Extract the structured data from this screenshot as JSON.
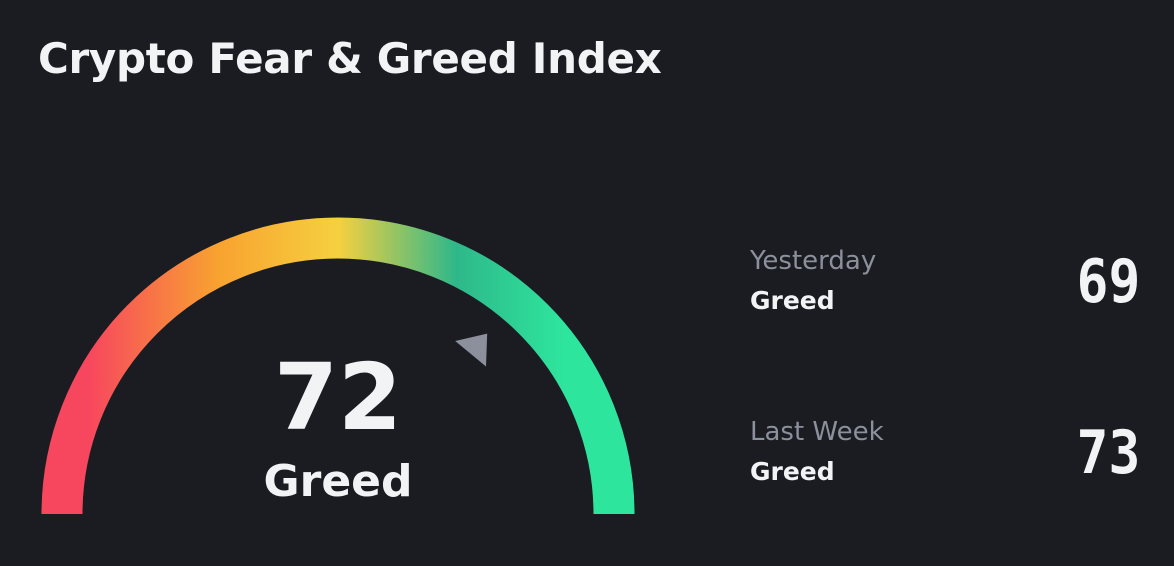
{
  "header": {
    "title": "Crypto Fear & Greed Index"
  },
  "gauge": {
    "value": 72,
    "min": 0,
    "max": 100,
    "label": "Greed",
    "colors": [
      "#f7475e",
      "#f8a330",
      "#f6d03f",
      "#2eb88a",
      "#2ee59d"
    ],
    "pointer_color": "#8b909c"
  },
  "history": [
    {
      "period": "Yesterday",
      "status": "Greed",
      "value": "69"
    },
    {
      "period": "Last Week",
      "status": "Greed",
      "value": "73"
    }
  ]
}
